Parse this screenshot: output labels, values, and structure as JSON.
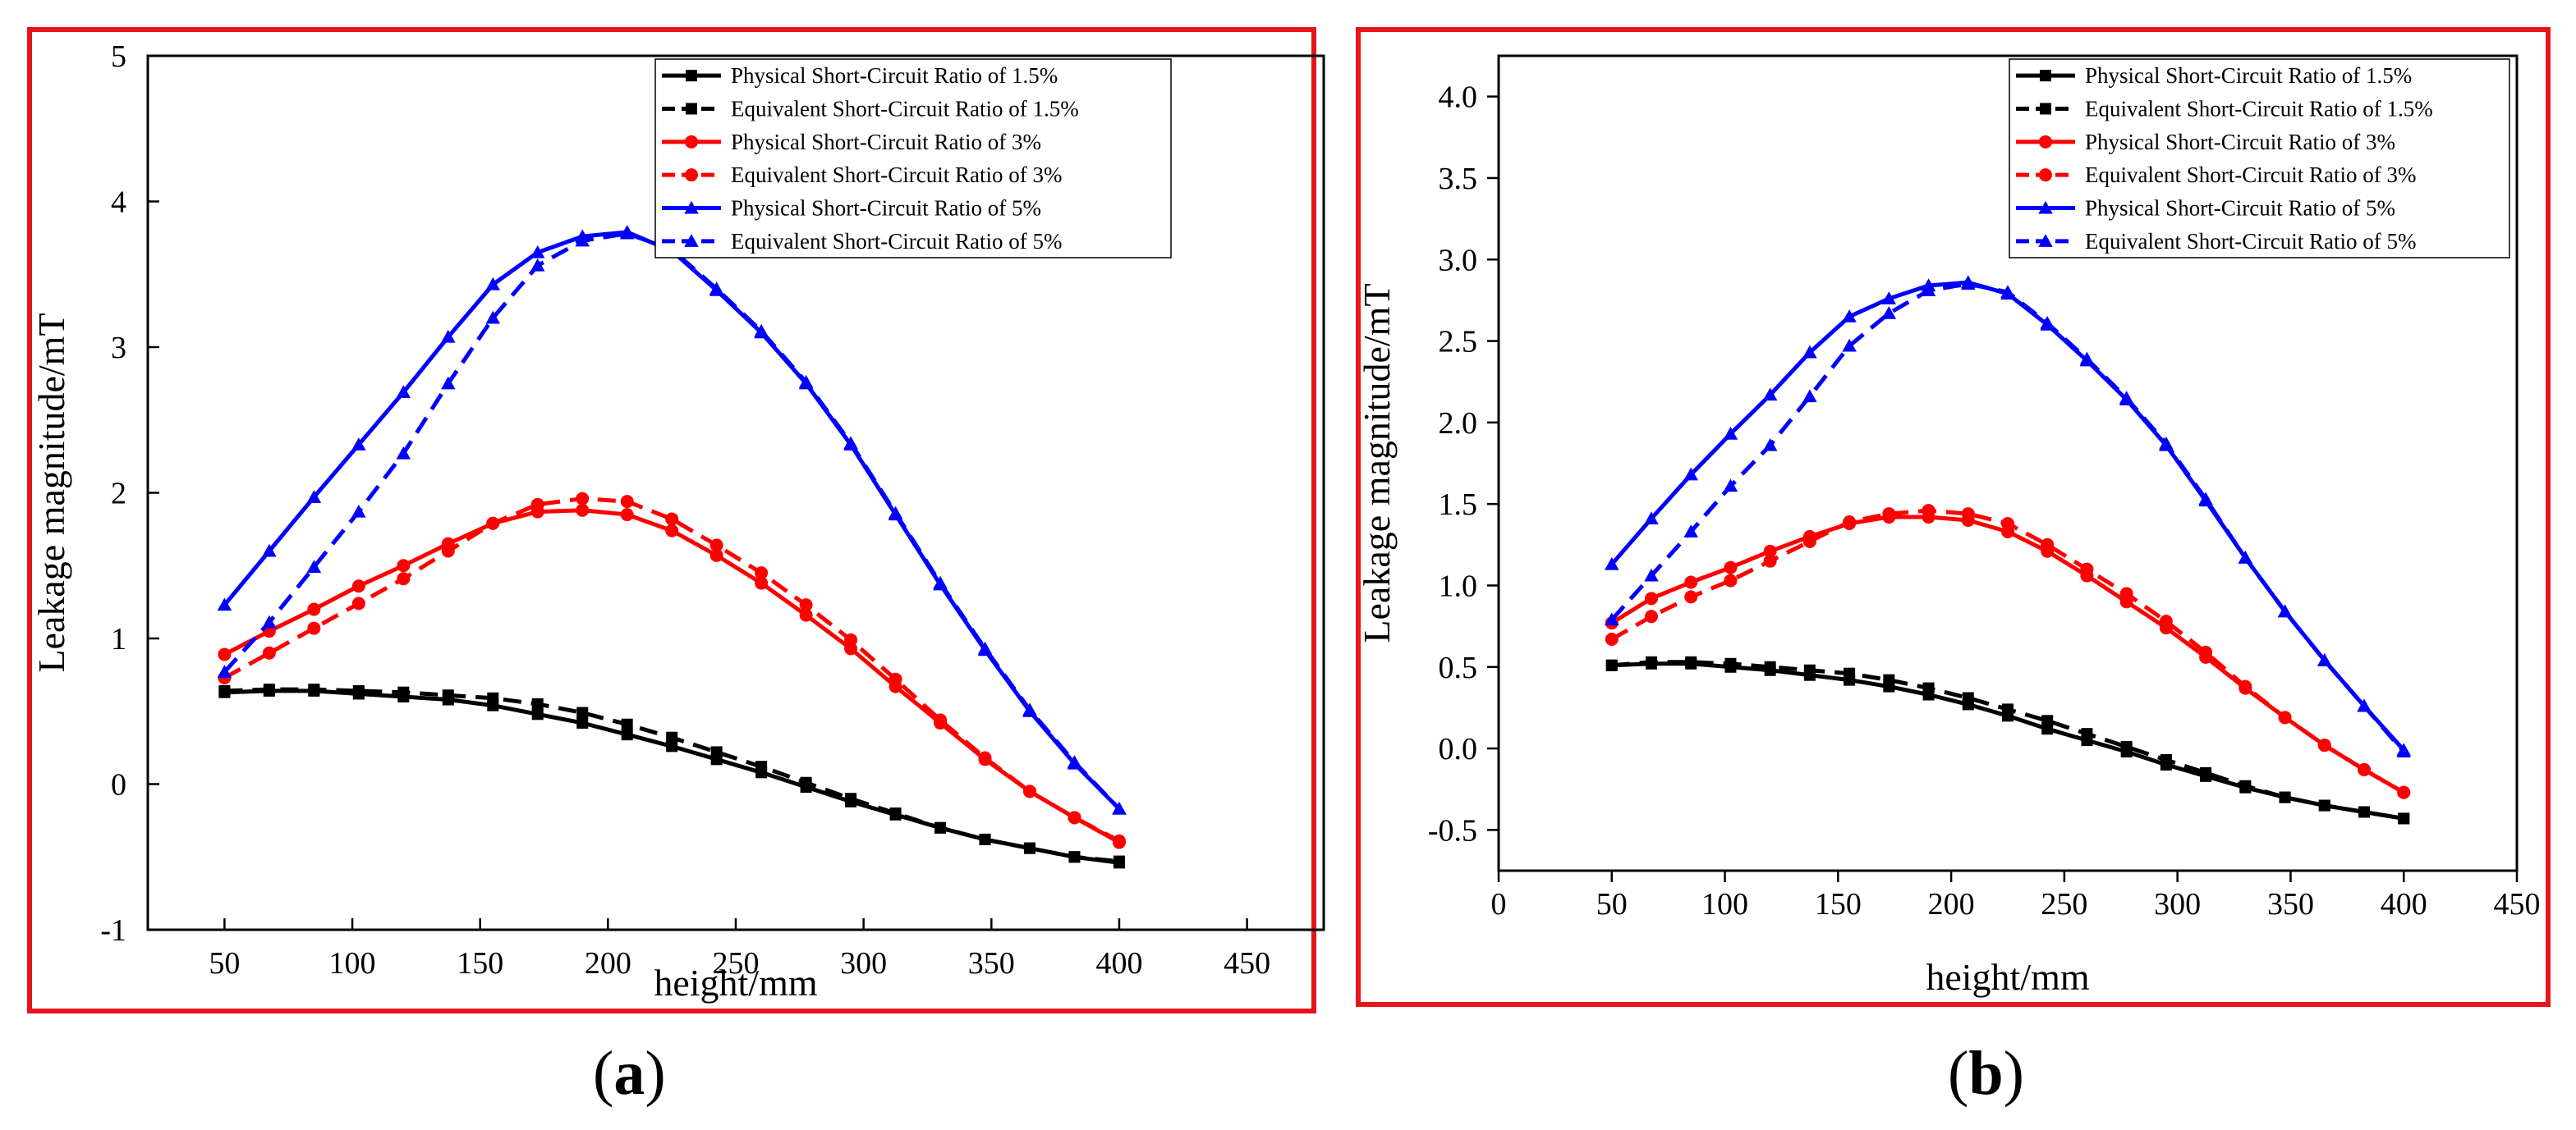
{
  "chart_data": [
    {
      "type": "line",
      "panel_label": "a",
      "xlabel": "height/mm",
      "ylabel": "Leakage magnitude/mT",
      "xlim": [
        20,
        480
      ],
      "ylim": [
        -1,
        5
      ],
      "xticks": [
        50,
        100,
        150,
        200,
        250,
        300,
        350,
        400,
        450
      ],
      "yticks": [
        -1,
        0,
        1,
        2,
        3,
        4,
        5
      ],
      "ytick_labels": [
        "-1",
        "0",
        "1",
        "2",
        "3",
        "4",
        "5"
      ],
      "legend_position": "top-right",
      "x": [
        50,
        67.5,
        85,
        102.5,
        120,
        137.5,
        155,
        172.5,
        190,
        207.5,
        225,
        242.5,
        260,
        277.5,
        295,
        312.5,
        330,
        347.5,
        365,
        382.5,
        400
      ],
      "series": [
        {
          "name": "Physical Short-Circuit Ratio of 1.5%",
          "color": "#000000",
          "dash": false,
          "marker": "square",
          "values": [
            0.63,
            0.64,
            0.64,
            0.62,
            0.6,
            0.58,
            0.54,
            0.48,
            0.42,
            0.34,
            0.26,
            0.17,
            0.08,
            -0.02,
            -0.12,
            -0.21,
            -0.3,
            -0.38,
            -0.44,
            -0.5,
            -0.54
          ]
        },
        {
          "name": "Equivalent Short-Circuit Ratio of 1.5%",
          "color": "#000000",
          "dash": true,
          "marker": "square",
          "values": [
            0.64,
            0.65,
            0.65,
            0.64,
            0.63,
            0.61,
            0.59,
            0.55,
            0.49,
            0.41,
            0.32,
            0.22,
            0.12,
            0.01,
            -0.1,
            -0.2,
            -0.3,
            -0.38,
            -0.44,
            -0.5,
            -0.53
          ]
        },
        {
          "name": "Physical Short-Circuit Ratio of 3%",
          "color": "#ff0000",
          "dash": false,
          "marker": "circle",
          "values": [
            0.89,
            1.05,
            1.2,
            1.36,
            1.5,
            1.65,
            1.79,
            1.87,
            1.88,
            1.85,
            1.74,
            1.57,
            1.38,
            1.16,
            0.93,
            0.67,
            0.42,
            0.17,
            -0.05,
            -0.23,
            -0.4
          ]
        },
        {
          "name": "Equivalent Short-Circuit Ratio of 3%",
          "color": "#ff0000",
          "dash": true,
          "marker": "circle",
          "values": [
            0.73,
            0.9,
            1.07,
            1.24,
            1.41,
            1.6,
            1.79,
            1.92,
            1.96,
            1.94,
            1.82,
            1.64,
            1.45,
            1.23,
            0.99,
            0.72,
            0.44,
            0.18,
            -0.05,
            -0.23,
            -0.39
          ]
        },
        {
          "name": "Physical Short-Circuit Ratio of 5%",
          "color": "#0000ff",
          "dash": false,
          "marker": "triangle",
          "values": [
            1.23,
            1.6,
            1.97,
            2.33,
            2.69,
            3.07,
            3.43,
            3.65,
            3.76,
            3.79,
            3.66,
            3.39,
            3.1,
            2.75,
            2.33,
            1.85,
            1.37,
            0.92,
            0.5,
            0.14,
            -0.17
          ]
        },
        {
          "name": "Equivalent Short-Circuit Ratio of 5%",
          "color": "#0000ff",
          "dash": true,
          "marker": "triangle",
          "values": [
            0.77,
            1.11,
            1.49,
            1.87,
            2.27,
            2.75,
            3.2,
            3.56,
            3.73,
            3.78,
            3.67,
            3.4,
            3.11,
            2.76,
            2.34,
            1.86,
            1.38,
            0.93,
            0.51,
            0.15,
            -0.17
          ]
        }
      ]
    },
    {
      "type": "line",
      "panel_label": "b",
      "xlabel": "height/mm",
      "ylabel": "Leakage magnitude/mT",
      "xlim": [
        0,
        450
      ],
      "ylim": [
        -0.75,
        4.25
      ],
      "xticks": [
        0,
        50,
        100,
        150,
        200,
        250,
        300,
        350,
        400,
        450
      ],
      "yticks": [
        -0.5,
        0,
        0.5,
        1,
        1.5,
        2,
        2.5,
        3,
        3.5,
        4
      ],
      "ytick_labels": [
        "-0.5",
        "0.0",
        "0.5",
        "1.0",
        "1.5",
        "2.0",
        "2.5",
        "3.0",
        "3.5",
        "4.0"
      ],
      "legend_position": "top-right",
      "x": [
        50,
        67.5,
        85,
        102.5,
        120,
        137.5,
        155,
        172.5,
        190,
        207.5,
        225,
        242.5,
        260,
        277.5,
        295,
        312.5,
        330,
        347.5,
        365,
        382.5,
        400
      ],
      "series": [
        {
          "name": "Physical Short-Circuit Ratio of 1.5%",
          "color": "#000000",
          "dash": false,
          "marker": "square",
          "values": [
            0.51,
            0.52,
            0.52,
            0.5,
            0.48,
            0.45,
            0.42,
            0.38,
            0.33,
            0.27,
            0.2,
            0.12,
            0.05,
            -0.02,
            -0.1,
            -0.17,
            -0.24,
            -0.3,
            -0.35,
            -0.39,
            -0.43
          ]
        },
        {
          "name": "Equivalent Short-Circuit Ratio of 1.5%",
          "color": "#000000",
          "dash": true,
          "marker": "square",
          "values": [
            0.51,
            0.53,
            0.53,
            0.52,
            0.5,
            0.48,
            0.46,
            0.42,
            0.37,
            0.31,
            0.24,
            0.17,
            0.09,
            0.01,
            -0.07,
            -0.15,
            -0.23,
            -0.3,
            -0.35,
            -0.39,
            -0.43
          ]
        },
        {
          "name": "Physical Short-Circuit Ratio of 3%",
          "color": "#ff0000",
          "dash": false,
          "marker": "circle",
          "values": [
            0.77,
            0.92,
            1.02,
            1.11,
            1.21,
            1.3,
            1.38,
            1.42,
            1.42,
            1.4,
            1.33,
            1.21,
            1.06,
            0.9,
            0.74,
            0.56,
            0.37,
            0.19,
            0.02,
            -0.13,
            -0.27
          ]
        },
        {
          "name": "Equivalent Short-Circuit Ratio of 3%",
          "color": "#ff0000",
          "dash": true,
          "marker": "circle",
          "values": [
            0.67,
            0.81,
            0.93,
            1.03,
            1.15,
            1.27,
            1.39,
            1.44,
            1.46,
            1.44,
            1.38,
            1.25,
            1.1,
            0.95,
            0.78,
            0.59,
            0.38,
            0.19,
            0.02,
            -0.13,
            -0.27
          ]
        },
        {
          "name": "Physical Short-Circuit Ratio of 5%",
          "color": "#0000ff",
          "dash": false,
          "marker": "triangle",
          "values": [
            1.13,
            1.41,
            1.68,
            1.93,
            2.17,
            2.43,
            2.65,
            2.76,
            2.84,
            2.86,
            2.79,
            2.6,
            2.38,
            2.14,
            1.86,
            1.52,
            1.17,
            0.84,
            0.54,
            0.26,
            -0.01
          ]
        },
        {
          "name": "Equivalent Short-Circuit Ratio of 5%",
          "color": "#0000ff",
          "dash": true,
          "marker": "triangle",
          "values": [
            0.79,
            1.06,
            1.33,
            1.61,
            1.86,
            2.16,
            2.47,
            2.67,
            2.81,
            2.85,
            2.8,
            2.61,
            2.39,
            2.15,
            1.87,
            1.53,
            1.17,
            0.84,
            0.54,
            0.26,
            -0.02
          ]
        }
      ]
    }
  ]
}
